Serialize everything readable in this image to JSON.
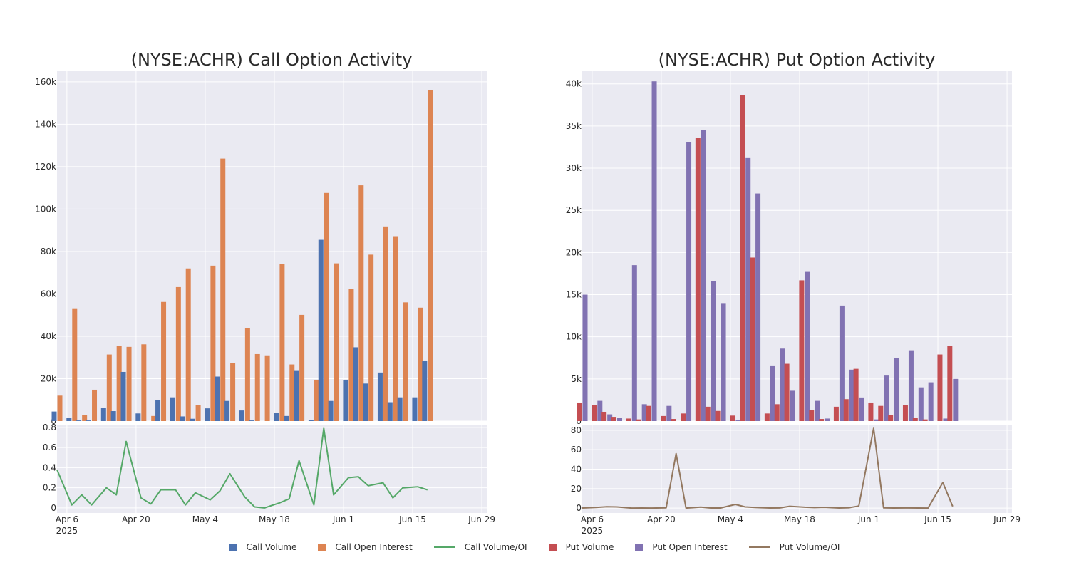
{
  "chart_data": [
    {
      "type": "bar",
      "title": "(NYSE:ACHR) Call Option Activity",
      "x": [
        "2025-04-04",
        "2025-04-07",
        "2025-04-09",
        "2025-04-11",
        "2025-04-14",
        "2025-04-16",
        "2025-04-18",
        "2025-04-21",
        "2025-04-23",
        "2025-04-25",
        "2025-04-28",
        "2025-04-30",
        "2025-05-02",
        "2025-05-05",
        "2025-05-07",
        "2025-05-09",
        "2025-05-12",
        "2025-05-14",
        "2025-05-16",
        "2025-05-19",
        "2025-05-21",
        "2025-05-23",
        "2025-05-26",
        "2025-05-28",
        "2025-05-30",
        "2025-06-02",
        "2025-06-04",
        "2025-06-06",
        "2025-06-09",
        "2025-06-11",
        "2025-06-13",
        "2025-06-16",
        "2025-06-18",
        "2025-06-20",
        "2025-06-23",
        "2025-06-25",
        "2025-06-27",
        "2025-06-30"
      ],
      "series": [
        {
          "name": "Call Volume",
          "color": "#4c72b0",
          "values": [
            4500,
            1500,
            300,
            300,
            6200,
            4700,
            23200,
            3600,
            0,
            10000,
            11200,
            2200,
            1100,
            6000,
            21000,
            9500,
            5000,
            300,
            0,
            3900,
            2400,
            24000,
            500,
            85500,
            9500,
            19200,
            34800,
            17700,
            22900,
            8900,
            11200,
            11200,
            28500,
            0,
            0,
            0,
            0,
            0
          ]
        },
        {
          "name": "Call Open Interest",
          "color": "#dd8452",
          "values": [
            12000,
            53200,
            2900,
            14800,
            31400,
            35500,
            35000,
            36200,
            2400,
            56200,
            63200,
            72000,
            7700,
            73300,
            123800,
            27400,
            44000,
            31600,
            31000,
            74200,
            26700,
            50100,
            19500,
            107600,
            74400,
            62300,
            111200,
            78500,
            91800,
            87200,
            56000,
            53500,
            156200,
            0,
            0,
            0,
            0,
            0
          ]
        },
        {
          "name": "Call Volume/OI",
          "color": "#55a868",
          "values": [
            0.38,
            0.03,
            0.13,
            0.03,
            0.2,
            0.13,
            0.66,
            0.1,
            0.04,
            0.18,
            0.18,
            0.03,
            0.15,
            0.08,
            0.17,
            0.34,
            0.11,
            0.01,
            0.0,
            0.05,
            0.09,
            0.47,
            0.03,
            0.79,
            0.13,
            0.3,
            0.31,
            0.22,
            0.25,
            0.1,
            0.2,
            0.21,
            0.18,
            0,
            0,
            0,
            0,
            0
          ]
        }
      ],
      "yticks": [
        "0",
        "20k",
        "40k",
        "60k",
        "80k",
        "100k",
        "120k",
        "140k",
        "160k"
      ],
      "ylim": [
        0,
        165000
      ],
      "ratio_yticks": [
        "0",
        "0.2",
        "0.4",
        "0.6",
        "0.8"
      ],
      "ratio_ylim": [
        -0.05,
        0.82
      ],
      "xticks": [
        {
          "label": "Apr 6",
          "sub": "2025",
          "date": "2025-04-06"
        },
        {
          "label": "Apr 20",
          "sub": "",
          "date": "2025-04-20"
        },
        {
          "label": "May 4",
          "sub": "",
          "date": "2025-05-04"
        },
        {
          "label": "May 18",
          "sub": "",
          "date": "2025-05-18"
        },
        {
          "label": "Jun 1",
          "sub": "",
          "date": "2025-06-01"
        },
        {
          "label": "Jun 15",
          "sub": "",
          "date": "2025-06-15"
        },
        {
          "label": "Jun 29",
          "sub": "",
          "date": "2025-06-29"
        }
      ],
      "xlim": [
        "2025-04-04",
        "2025-06-30"
      ]
    },
    {
      "type": "bar",
      "title": "(NYSE:ACHR) Put Option Activity",
      "x": [
        "2025-04-04",
        "2025-04-07",
        "2025-04-09",
        "2025-04-11",
        "2025-04-14",
        "2025-04-16",
        "2025-04-18",
        "2025-04-21",
        "2025-04-23",
        "2025-04-25",
        "2025-04-28",
        "2025-04-30",
        "2025-05-02",
        "2025-05-05",
        "2025-05-07",
        "2025-05-09",
        "2025-05-12",
        "2025-05-14",
        "2025-05-16",
        "2025-05-19",
        "2025-05-21",
        "2025-05-23",
        "2025-05-26",
        "2025-05-28",
        "2025-05-30",
        "2025-06-02",
        "2025-06-04",
        "2025-06-06",
        "2025-06-09",
        "2025-06-11",
        "2025-06-13",
        "2025-06-16",
        "2025-06-18",
        "2025-06-20",
        "2025-06-23",
        "2025-06-25",
        "2025-06-27",
        "2025-06-30"
      ],
      "series": [
        {
          "name": "Put Volume",
          "color": "#c44e52",
          "values": [
            2200,
            1900,
            1100,
            500,
            300,
            200,
            1800,
            600,
            250,
            900,
            33600,
            1700,
            1200,
            650,
            38700,
            19400,
            900,
            2000,
            6800,
            16700,
            1300,
            250,
            1700,
            2600,
            6200,
            2200,
            1800,
            700,
            1900,
            400,
            200,
            7900,
            8900,
            0,
            0,
            0,
            0,
            0
          ]
        },
        {
          "name": "Put Open Interest",
          "color": "#8172b2",
          "values": [
            15000,
            2400,
            800,
            400,
            18500,
            2000,
            40300,
            1800,
            0,
            33100,
            34500,
            16600,
            14000,
            100,
            31200,
            27000,
            6600,
            8600,
            3600,
            17700,
            2400,
            300,
            13700,
            6100,
            2800,
            200,
            5400,
            7500,
            8400,
            4000,
            4600,
            300,
            5000,
            0,
            0,
            0,
            0,
            0
          ]
        },
        {
          "name": "Put Volume/OI",
          "color": "#937860",
          "values": [
            0.15,
            0.79,
            1.38,
            1.25,
            0.02,
            0.1,
            0.04,
            0.33,
            56,
            0.03,
            0.97,
            0.1,
            0.09,
            3.8,
            1.24,
            0.72,
            0.14,
            0.23,
            1.9,
            0.94,
            0.54,
            0.83,
            0.12,
            0.43,
            2.2,
            82,
            0.33,
            0.09,
            0.23,
            0.1,
            0.04,
            26.3,
            1.78,
            0,
            0,
            0,
            0,
            0
          ]
        }
      ],
      "yticks": [
        "0",
        "5k",
        "10k",
        "15k",
        "20k",
        "25k",
        "30k",
        "35k",
        "40k"
      ],
      "ylim": [
        0,
        41500
      ],
      "ratio_yticks": [
        "0",
        "20",
        "40",
        "60",
        "80"
      ],
      "ratio_ylim": [
        -5,
        85
      ],
      "xticks": [
        {
          "label": "Apr 6",
          "sub": "2025",
          "date": "2025-04-06"
        },
        {
          "label": "Apr 20",
          "sub": "",
          "date": "2025-04-20"
        },
        {
          "label": "May 4",
          "sub": "",
          "date": "2025-05-04"
        },
        {
          "label": "May 18",
          "sub": "",
          "date": "2025-05-18"
        },
        {
          "label": "Jun 1",
          "sub": "",
          "date": "2025-06-01"
        },
        {
          "label": "Jun 15",
          "sub": "",
          "date": "2025-06-15"
        },
        {
          "label": "Jun 29",
          "sub": "",
          "date": "2025-06-29"
        }
      ],
      "xlim": [
        "2025-04-04",
        "2025-06-30"
      ]
    }
  ],
  "legend": [
    {
      "label": "Call Volume",
      "kind": "box",
      "color": "#4c72b0"
    },
    {
      "label": "Call Open Interest",
      "kind": "box",
      "color": "#dd8452"
    },
    {
      "label": "Call Volume/OI",
      "kind": "line",
      "color": "#55a868"
    },
    {
      "label": "Put Volume",
      "kind": "box",
      "color": "#c44e52"
    },
    {
      "label": "Put Open Interest",
      "kind": "box",
      "color": "#8172b2"
    },
    {
      "label": "Put Volume/OI",
      "kind": "line",
      "color": "#937860"
    }
  ]
}
